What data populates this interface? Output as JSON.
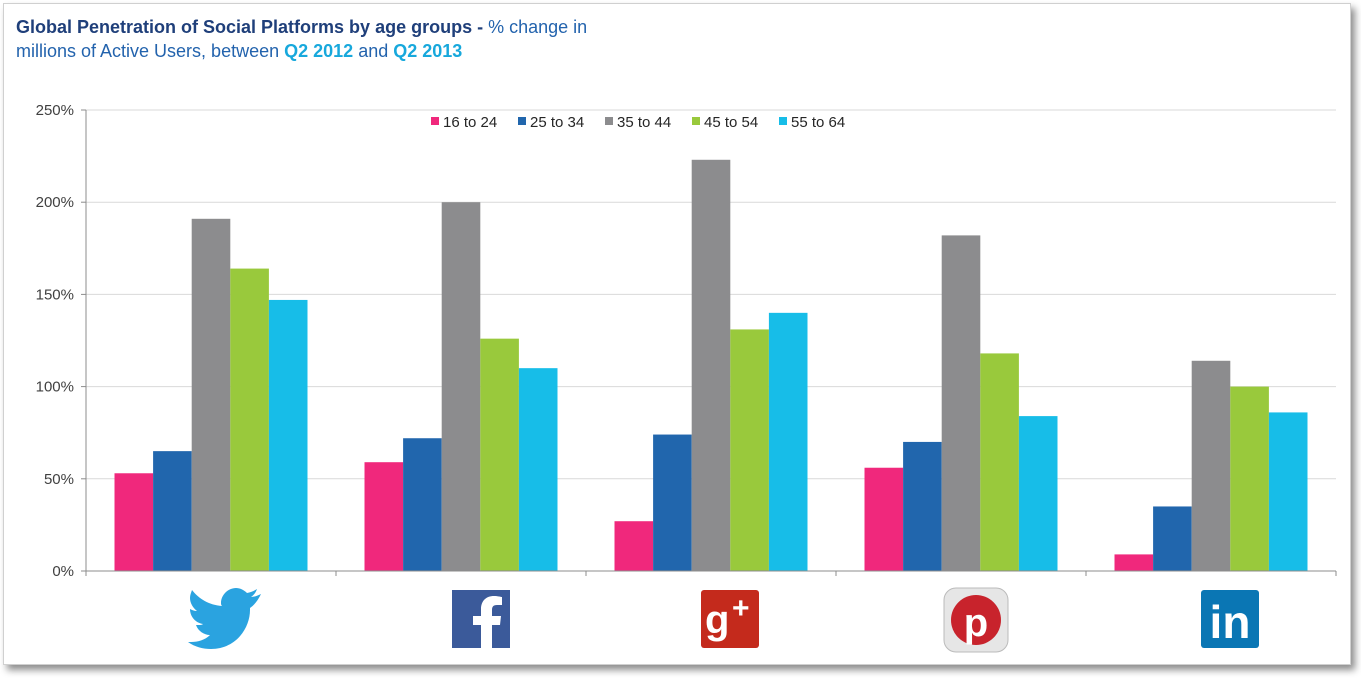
{
  "title": {
    "bold": "Global Penetration of Social Platforms by age groups -",
    "part1": " % change in",
    "part2": "millions of Active Users, between ",
    "period1": "Q2 2012",
    "and": " and ",
    "period2": "Q2 2013"
  },
  "chart_data": {
    "type": "bar",
    "title": "Global Penetration of Social Platforms by age groups - % change in millions of Active Users, between Q2 2012 and Q2 2013",
    "categories": [
      "Twitter",
      "Facebook",
      "Google+",
      "Pinterest",
      "LinkedIn"
    ],
    "category_icons": [
      "twitter-icon",
      "facebook-icon",
      "google-plus-icon",
      "pinterest-icon",
      "linkedin-icon"
    ],
    "series": [
      {
        "name": "16 to 24",
        "color": "#f0287c",
        "values": [
          53,
          59,
          27,
          56,
          9
        ]
      },
      {
        "name": "25 to 34",
        "color": "#2166ad",
        "values": [
          65,
          72,
          74,
          70,
          35
        ]
      },
      {
        "name": "35 to 44",
        "color": "#8c8c8e",
        "values": [
          191,
          200,
          223,
          182,
          114
        ]
      },
      {
        "name": "45 to 54",
        "color": "#99c93c",
        "values": [
          164,
          126,
          131,
          118,
          100
        ]
      },
      {
        "name": "55 to 64",
        "color": "#17bde8",
        "values": [
          147,
          110,
          140,
          84,
          86
        ]
      }
    ],
    "yticks": [
      "0%",
      "50%",
      "100%",
      "150%",
      "200%",
      "250%"
    ],
    "ylim": [
      0,
      250
    ],
    "grid": true,
    "legend_position": "top-center",
    "xlabel": "",
    "ylabel": ""
  }
}
